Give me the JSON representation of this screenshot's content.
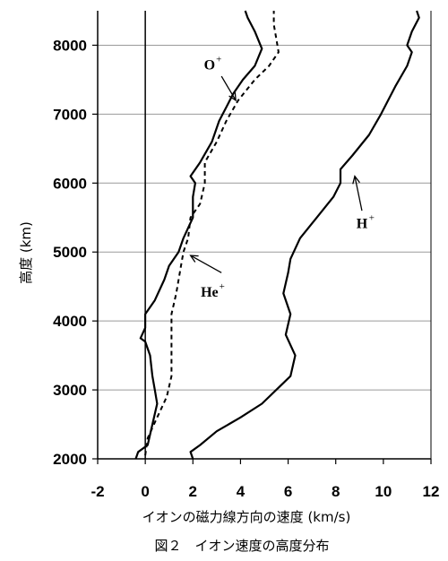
{
  "chart_data": {
    "type": "line",
    "xlabel": "イオンの磁力線方向の速度 (km/s)",
    "ylabel": "高度 (km)",
    "caption": "図２　イオン速度の高度分布",
    "xlim": [
      -2,
      12
    ],
    "ylim": [
      2000,
      8500
    ],
    "xticks": [
      "-2",
      "0",
      "2",
      "4",
      "6",
      "8",
      "10",
      "12"
    ],
    "yticks": [
      "2000",
      "3000",
      "4000",
      "5000",
      "6000",
      "7000",
      "8000"
    ],
    "grid": "horizontal",
    "series": [
      {
        "name": "O",
        "sup": "+",
        "style": "solid",
        "points": [
          [
            -0.4,
            2000
          ],
          [
            -0.3,
            2100
          ],
          [
            0.1,
            2200
          ],
          [
            0.3,
            2500
          ],
          [
            0.5,
            2800
          ],
          [
            0.4,
            3000
          ],
          [
            0.3,
            3200
          ],
          [
            0.2,
            3500
          ],
          [
            0,
            3700
          ],
          [
            -0.2,
            3750
          ],
          [
            0,
            3900
          ],
          [
            0,
            4100
          ],
          [
            0.4,
            4300
          ],
          [
            0.8,
            4600
          ],
          [
            1.0,
            4800
          ],
          [
            1.4,
            5000
          ],
          [
            1.6,
            5200
          ],
          [
            2.0,
            5500
          ],
          [
            2.0,
            5800
          ],
          [
            2.1,
            6000
          ],
          [
            1.9,
            6100
          ],
          [
            2.3,
            6300
          ],
          [
            2.8,
            6600
          ],
          [
            3.1,
            6900
          ],
          [
            3.4,
            7100
          ],
          [
            3.7,
            7300
          ],
          [
            4.1,
            7500
          ],
          [
            4.6,
            7700
          ],
          [
            4.9,
            7950
          ],
          [
            4.6,
            8200
          ],
          [
            4.3,
            8400
          ],
          [
            4.2,
            8500
          ]
        ]
      },
      {
        "name": "He",
        "sup": "+",
        "style": "dashed",
        "points": [
          [
            0,
            2050
          ],
          [
            0.1,
            2300
          ],
          [
            0.5,
            2600
          ],
          [
            0.9,
            2900
          ],
          [
            1.1,
            3200
          ],
          [
            1.1,
            3500
          ],
          [
            1.1,
            3800
          ],
          [
            1.1,
            4100
          ],
          [
            1.3,
            4400
          ],
          [
            1.5,
            4800
          ],
          [
            1.6,
            5000
          ],
          [
            1.8,
            5200
          ],
          [
            1.9,
            5500
          ],
          [
            2.3,
            5700
          ],
          [
            2.5,
            6000
          ],
          [
            2.5,
            6300
          ],
          [
            3.0,
            6600
          ],
          [
            3.4,
            6900
          ],
          [
            3.9,
            7200
          ],
          [
            4.6,
            7500
          ],
          [
            5.2,
            7700
          ],
          [
            5.6,
            7900
          ],
          [
            5.5,
            8100
          ],
          [
            5.4,
            8300
          ],
          [
            5.4,
            8500
          ]
        ]
      },
      {
        "name": "H",
        "sup": "+",
        "style": "solid",
        "points": [
          [
            2.0,
            2000
          ],
          [
            1.9,
            2100
          ],
          [
            2.3,
            2200
          ],
          [
            3.0,
            2400
          ],
          [
            4.0,
            2600
          ],
          [
            4.9,
            2800
          ],
          [
            5.5,
            3000
          ],
          [
            6.1,
            3200
          ],
          [
            6.3,
            3500
          ],
          [
            5.9,
            3800
          ],
          [
            6.1,
            4100
          ],
          [
            5.8,
            4400
          ],
          [
            6.0,
            4700
          ],
          [
            6.1,
            4900
          ],
          [
            6.5,
            5200
          ],
          [
            7.2,
            5500
          ],
          [
            7.9,
            5800
          ],
          [
            8.2,
            6000
          ],
          [
            8.2,
            6200
          ],
          [
            8.7,
            6400
          ],
          [
            9.4,
            6700
          ],
          [
            9.9,
            7000
          ],
          [
            10.5,
            7400
          ],
          [
            11.0,
            7700
          ],
          [
            11.2,
            7900
          ],
          [
            11.0,
            8000
          ],
          [
            11.2,
            8200
          ],
          [
            11.5,
            8400
          ],
          [
            11.4,
            8500
          ]
        ]
      }
    ]
  }
}
